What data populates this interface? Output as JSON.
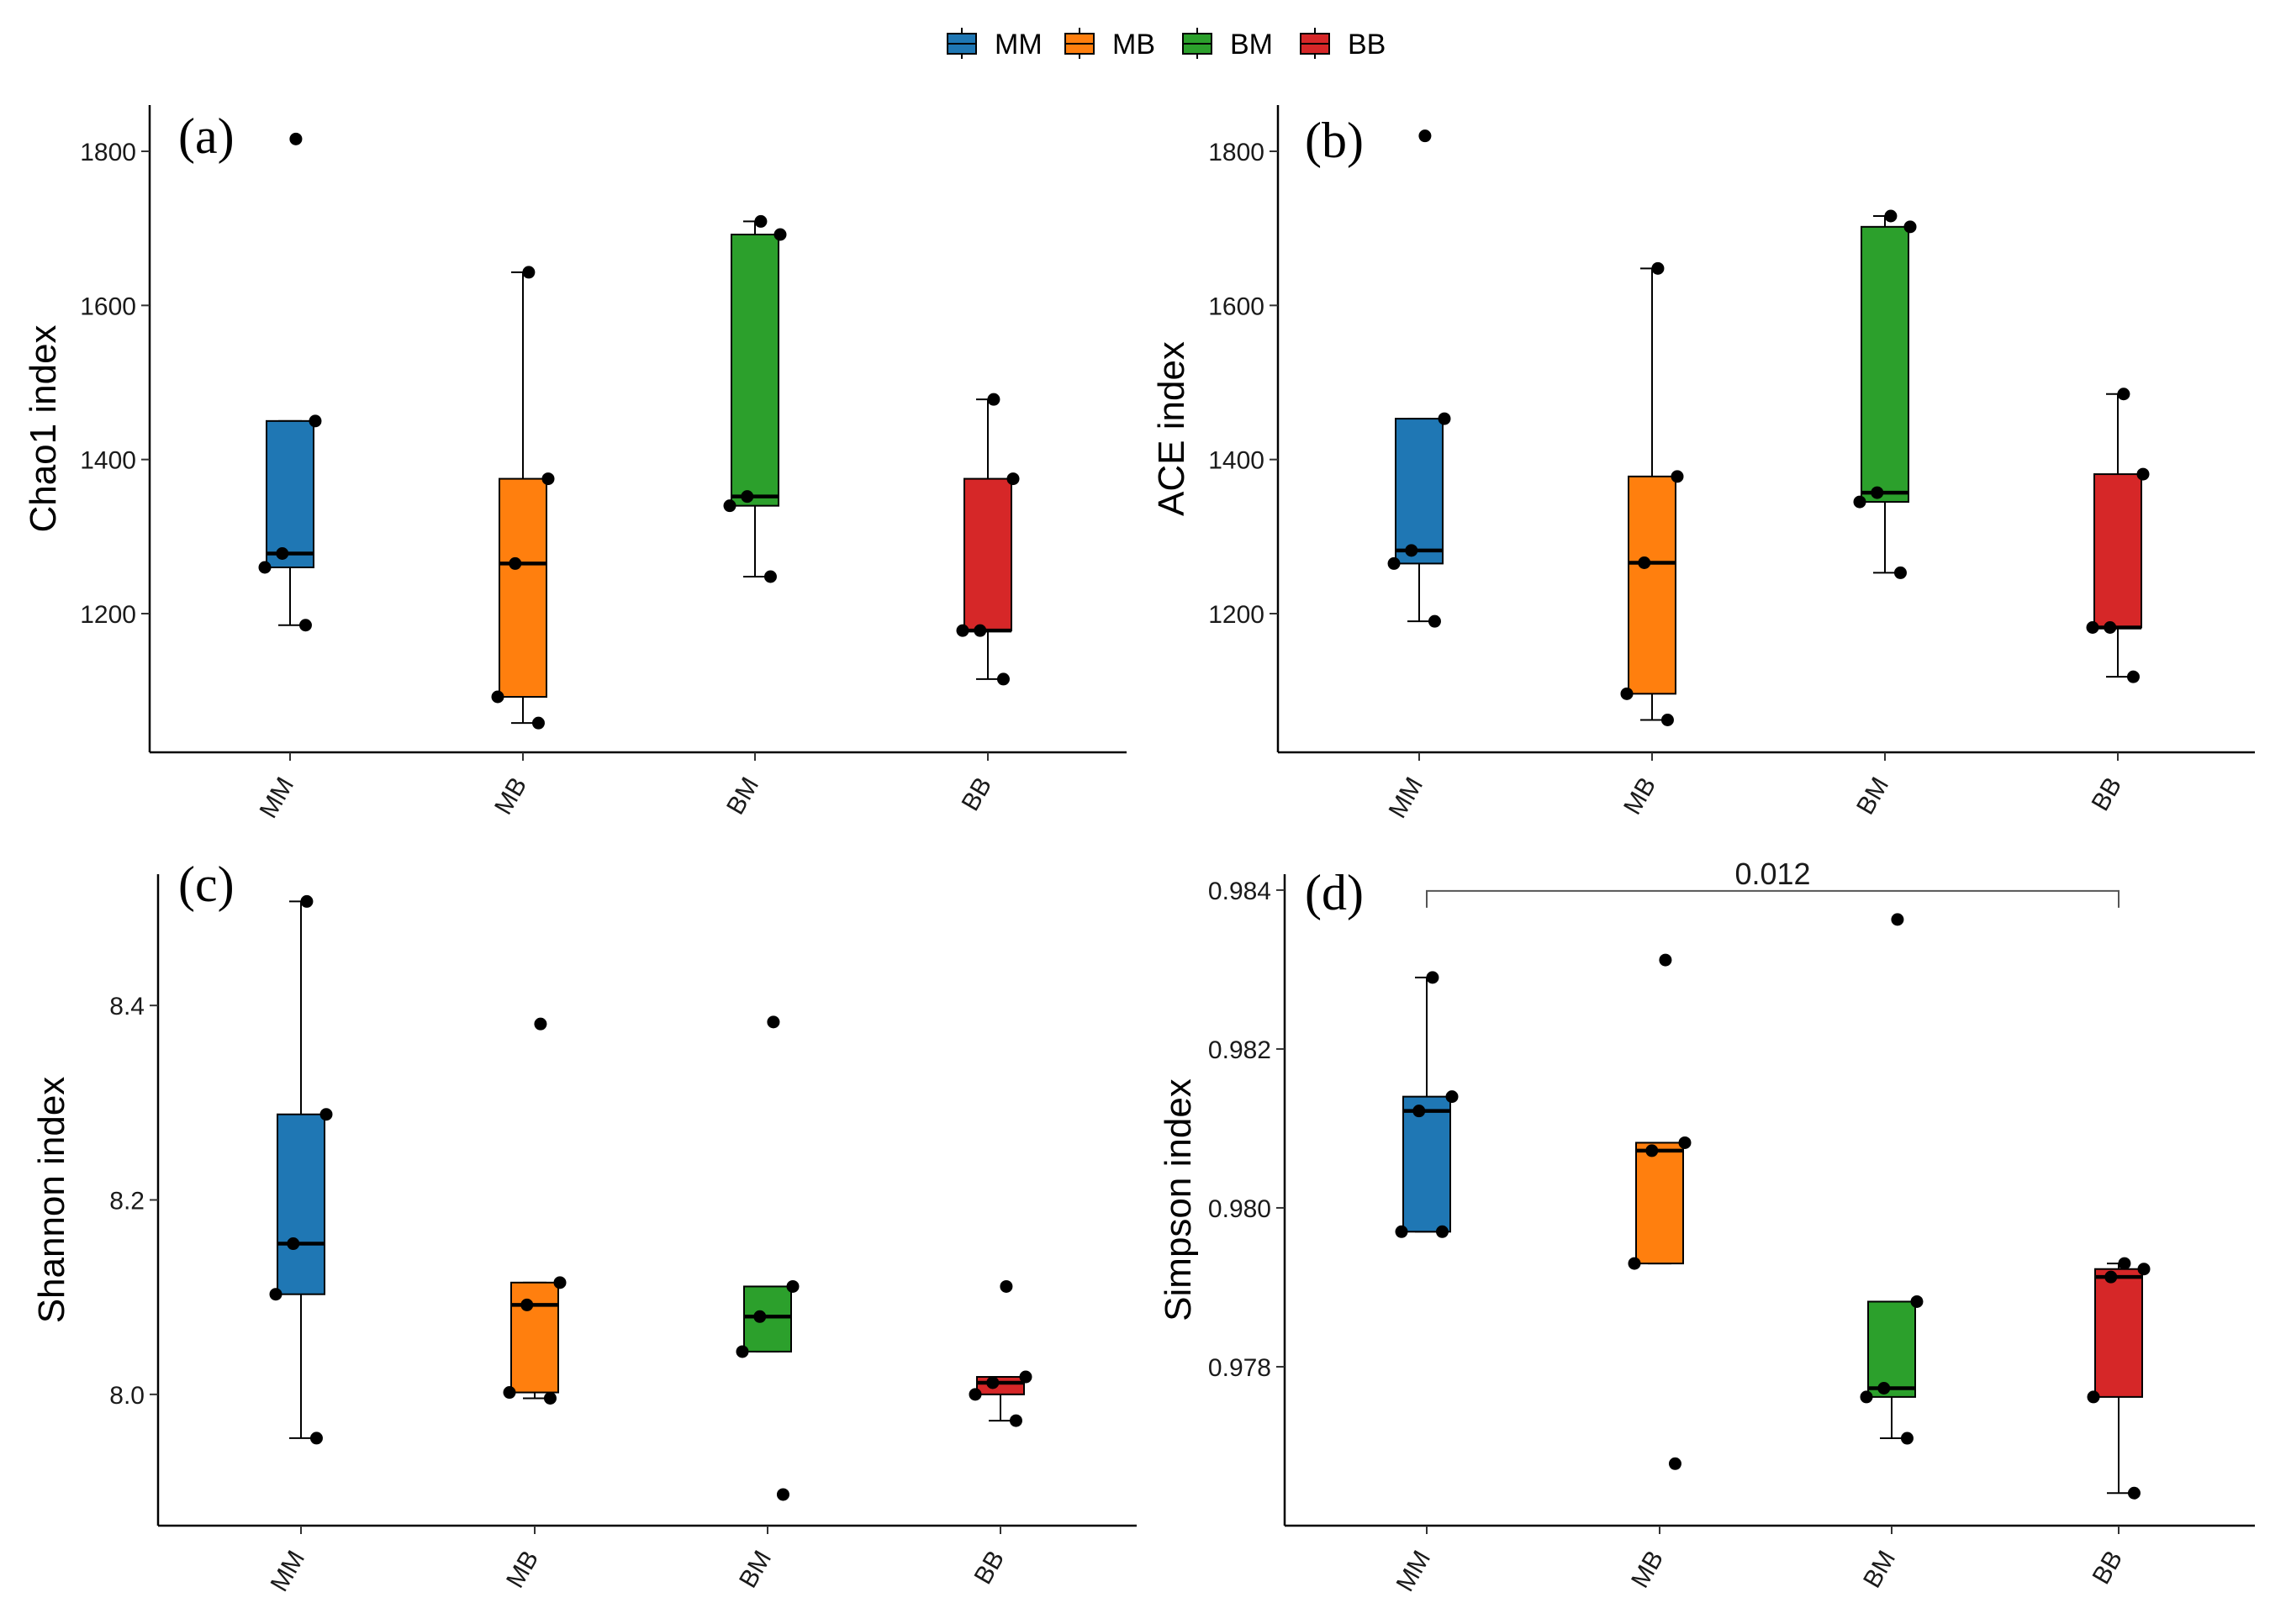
{
  "legend": {
    "position": "top",
    "entries": [
      {
        "label": "MM",
        "color": "#1f77b4"
      },
      {
        "label": "MB",
        "color": "#ff7f0e"
      },
      {
        "label": "BM",
        "color": "#2ca02c"
      },
      {
        "label": "BB",
        "color": "#d62728"
      }
    ]
  },
  "chart_data": [
    {
      "type": "box",
      "panel_label": "(a)",
      "ylabel": "Chao1 index",
      "categories": [
        "MM",
        "MB",
        "BM",
        "BB"
      ],
      "ylim": [
        1020,
        1860
      ],
      "yticks": [
        1200,
        1400,
        1600,
        1800
      ],
      "boxes": [
        {
          "category": "MM",
          "whisker_low": 1185,
          "q1": 1260,
          "median": 1278,
          "q3": 1450,
          "whisker_high": 1450
        },
        {
          "category": "MB",
          "whisker_low": 1058,
          "q1": 1092,
          "median": 1265,
          "q3": 1375,
          "whisker_high": 1643
        },
        {
          "category": "BM",
          "whisker_low": 1248,
          "q1": 1340,
          "median": 1352,
          "q3": 1692,
          "whisker_high": 1709
        },
        {
          "category": "BB",
          "whisker_low": 1115,
          "q1": 1178,
          "median": 1178,
          "q3": 1375,
          "whisker_high": 1478
        }
      ],
      "points": [
        {
          "category": "MM",
          "values": [
            1816,
            1450,
            1278,
            1260,
            1185
          ]
        },
        {
          "category": "MB",
          "values": [
            1643,
            1375,
            1265,
            1092,
            1058
          ]
        },
        {
          "category": "BM",
          "values": [
            1709,
            1692,
            1352,
            1340,
            1248
          ]
        },
        {
          "category": "BB",
          "values": [
            1478,
            1375,
            1178,
            1178,
            1115
          ]
        }
      ]
    },
    {
      "type": "box",
      "panel_label": "(b)",
      "ylabel": "ACE index",
      "categories": [
        "MM",
        "MB",
        "BM",
        "BB"
      ],
      "ylim": [
        1020,
        1860
      ],
      "yticks": [
        1200,
        1400,
        1600,
        1800
      ],
      "boxes": [
        {
          "category": "MM",
          "whisker_low": 1190,
          "q1": 1265,
          "median": 1282,
          "q3": 1453,
          "whisker_high": 1453
        },
        {
          "category": "MB",
          "whisker_low": 1062,
          "q1": 1096,
          "median": 1266,
          "q3": 1378,
          "whisker_high": 1648
        },
        {
          "category": "BM",
          "whisker_low": 1253,
          "q1": 1345,
          "median": 1357,
          "q3": 1702,
          "whisker_high": 1716
        },
        {
          "category": "BB",
          "whisker_low": 1118,
          "q1": 1182,
          "median": 1182,
          "q3": 1381,
          "whisker_high": 1485
        }
      ],
      "points": [
        {
          "category": "MM",
          "values": [
            1820,
            1453,
            1282,
            1265,
            1190
          ]
        },
        {
          "category": "MB",
          "values": [
            1648,
            1378,
            1266,
            1096,
            1062
          ]
        },
        {
          "category": "BM",
          "values": [
            1716,
            1702,
            1357,
            1345,
            1253
          ]
        },
        {
          "category": "BB",
          "values": [
            1485,
            1381,
            1182,
            1182,
            1118
          ]
        }
      ]
    },
    {
      "type": "box",
      "panel_label": "(c)",
      "ylabel": "Shannon index",
      "categories": [
        "MM",
        "MB",
        "BM",
        "BB"
      ],
      "ylim": [
        7.865,
        8.535
      ],
      "yticks": [
        8.0,
        8.2,
        8.4
      ],
      "ytick_labels": [
        "8.0",
        "8.2",
        "8.4"
      ],
      "boxes": [
        {
          "category": "MM",
          "whisker_low": 7.955,
          "q1": 8.103,
          "median": 8.155,
          "q3": 8.288,
          "whisker_high": 8.507
        },
        {
          "category": "MB",
          "whisker_low": 7.996,
          "q1": 8.002,
          "median": 8.092,
          "q3": 8.115,
          "whisker_high": 8.115
        },
        {
          "category": "BM",
          "whisker_low": 8.044,
          "q1": 8.044,
          "median": 8.08,
          "q3": 8.111,
          "whisker_high": 8.111
        },
        {
          "category": "BB",
          "whisker_low": 7.973,
          "q1": 8.0,
          "median": 8.012,
          "q3": 8.018,
          "whisker_high": 8.018
        }
      ],
      "points": [
        {
          "category": "MM",
          "values": [
            8.507,
            8.288,
            8.155,
            8.103,
            7.955
          ]
        },
        {
          "category": "MB",
          "values": [
            8.381,
            8.115,
            8.092,
            8.002,
            7.996
          ]
        },
        {
          "category": "BM",
          "values": [
            8.383,
            8.111,
            8.08,
            8.044,
            7.897
          ]
        },
        {
          "category": "BB",
          "values": [
            8.111,
            8.018,
            8.012,
            8.0,
            7.973
          ]
        }
      ]
    },
    {
      "type": "box",
      "panel_label": "(d)",
      "ylabel": "Simpson index",
      "categories": [
        "MM",
        "MB",
        "BM",
        "BB"
      ],
      "ylim": [
        0.976,
        0.9842
      ],
      "yticks": [
        0.978,
        0.98,
        0.982,
        0.984
      ],
      "ytick_labels": [
        "0.978",
        "0.980",
        "0.982",
        "0.984"
      ],
      "boxes": [
        {
          "category": "MM",
          "whisker_low": 0.9797,
          "q1": 0.9797,
          "median": 0.98122,
          "q3": 0.9814,
          "whisker_high": 0.9829
        },
        {
          "category": "MB",
          "whisker_low": 0.9793,
          "q1": 0.9793,
          "median": 0.98072,
          "q3": 0.98082,
          "whisker_high": 0.98082
        },
        {
          "category": "BM",
          "whisker_low": 0.9771,
          "q1": 0.97762,
          "median": 0.97773,
          "q3": 0.97882,
          "whisker_high": 0.97882
        },
        {
          "category": "BB",
          "whisker_low": 0.97641,
          "q1": 0.97762,
          "median": 0.97913,
          "q3": 0.97923,
          "whisker_high": 0.9793
        }
      ],
      "points": [
        {
          "category": "MM",
          "values": [
            0.9829,
            0.9814,
            0.98122,
            0.9797,
            0.9797
          ]
        },
        {
          "category": "MB",
          "values": [
            0.98312,
            0.98082,
            0.98072,
            0.9793,
            0.97678
          ]
        },
        {
          "category": "BM",
          "values": [
            0.98363,
            0.97882,
            0.97773,
            0.97762,
            0.9771
          ]
        },
        {
          "category": "BB",
          "values": [
            0.9793,
            0.97923,
            0.97913,
            0.97762,
            0.97641
          ]
        }
      ],
      "comparison": {
        "from": "MM",
        "to": "BB",
        "label": "0.012",
        "y": 0.98399
      }
    }
  ]
}
